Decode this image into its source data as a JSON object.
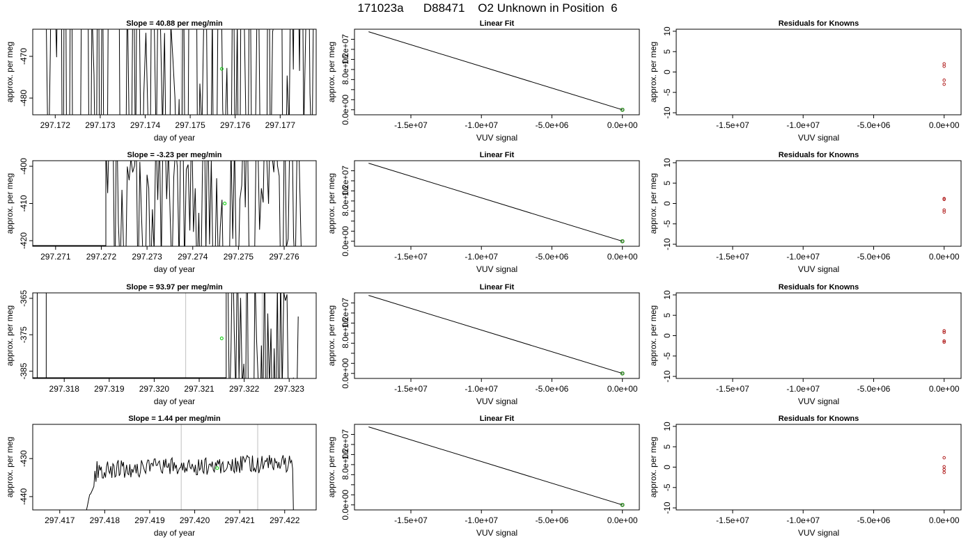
{
  "title": "171023a      D88471    O2 Unknown in Position  6",
  "chart_data": [
    {
      "type": "line",
      "panel": "time-series",
      "row": 0,
      "title": "Slope =  40.88  per meg/min",
      "xlabel": "day of year",
      "ylabel": "approx. per meg",
      "xlim": [
        297.1715,
        297.1778
      ],
      "ylim": [
        -484,
        -463.5
      ],
      "xticks": [
        297.172,
        297.173,
        297.174,
        297.175,
        297.176,
        297.177
      ],
      "xtick_labels": [
        "297.172",
        "297.173",
        "297.174",
        "297.175",
        "297.176",
        "297.177"
      ],
      "yticks": [
        -480,
        -470
      ],
      "ytick_labels": [
        "-480",
        "-470"
      ],
      "vlines": [
        297.1748
      ],
      "marker": {
        "x": 297.1757,
        "y": -473
      },
      "trace": {
        "seed": 7,
        "start": 297.1718,
        "end": 297.1778,
        "base": -474,
        "noise": 130,
        "n": 130
      }
    },
    {
      "type": "line",
      "panel": "linear-fit",
      "row": 0,
      "title": "Linear Fit",
      "xlabel": "VUV signal",
      "ylabel": "approx. per meg",
      "xlim": [
        -19000000.0,
        1200000.0
      ],
      "ylim": [
        -1000000.0,
        16000000.0
      ],
      "xticks": [
        -15000000.0,
        -10000000.0,
        -5000000.0,
        0
      ],
      "xtick_labels": [
        "-1.5e+07",
        "-1.0e+07",
        "-5.0e+06",
        "0.0e+00"
      ],
      "yticks": [
        0,
        2000000.0,
        4000000.0,
        6000000.0,
        8000000.0,
        10000000.0,
        12000000.0,
        14000000.0
      ],
      "ytick_labels": [
        "0.0e+00",
        "",
        "",
        "",
        "8.0e+06",
        "",
        "1.2e+07",
        ""
      ],
      "line": {
        "x": [
          -18000000.0,
          0
        ],
        "y": [
          15500000.0,
          0
        ]
      },
      "points": {
        "x": [
          0,
          0,
          0,
          0
        ],
        "y": [
          0,
          0,
          0,
          0
        ]
      }
    },
    {
      "type": "scatter",
      "panel": "residuals",
      "row": 0,
      "title": "Residuals for Knowns",
      "xlabel": "VUV signal",
      "ylabel": "approx. per meg",
      "xlim": [
        -19000000.0,
        1200000.0
      ],
      "ylim": [
        -10.5,
        10.5
      ],
      "xticks": [
        -15000000.0,
        -10000000.0,
        -5000000.0,
        0
      ],
      "xtick_labels": [
        "-1.5e+07",
        "-1.0e+07",
        "-5.0e+06",
        "0.0e+00"
      ],
      "yticks": [
        -10,
        -5,
        0,
        5,
        10
      ],
      "ytick_labels": [
        "-10",
        "-5",
        "0",
        "5",
        "10"
      ],
      "points": {
        "x": [
          0,
          0,
          0,
          0
        ],
        "y": [
          2.0,
          1.4,
          -2.0,
          -3.0
        ]
      }
    },
    {
      "type": "line",
      "panel": "time-series",
      "row": 1,
      "title": "Slope =  -3.23  per meg/min",
      "xlabel": "day of year",
      "ylabel": "approx. per meg",
      "xlim": [
        297.2705,
        297.2767
      ],
      "ylim": [
        -421.5,
        -398.5
      ],
      "xticks": [
        297.271,
        297.272,
        297.273,
        297.274,
        297.275,
        297.276
      ],
      "xtick_labels": [
        "297.271",
        "297.272",
        "297.273",
        "297.274",
        "297.275",
        "297.276"
      ],
      "yticks": [
        -420,
        -410,
        -400
      ],
      "ytick_labels": [
        "-420",
        "-410",
        "-400"
      ],
      "vlines": [],
      "marker": {
        "x": 297.2747,
        "y": -410
      },
      "trace": {
        "seed": 19,
        "start": 297.2721,
        "end": 297.2764,
        "base": -410,
        "noise": 60,
        "n": 110,
        "prefix": -421.5
      }
    },
    {
      "type": "line",
      "panel": "linear-fit",
      "row": 1,
      "title": "Linear Fit",
      "xlabel": "VUV signal",
      "ylabel": "approx. per meg",
      "xlim": [
        -19000000.0,
        1200000.0
      ],
      "ylim": [
        -1000000.0,
        16000000.0
      ],
      "xticks": [
        -15000000.0,
        -10000000.0,
        -5000000.0,
        0
      ],
      "xtick_labels": [
        "-1.5e+07",
        "-1.0e+07",
        "-5.0e+06",
        "0.0e+00"
      ],
      "yticks": [
        0,
        2000000.0,
        4000000.0,
        6000000.0,
        8000000.0,
        10000000.0,
        12000000.0,
        14000000.0
      ],
      "ytick_labels": [
        "0.0e+00",
        "",
        "",
        "",
        "8.0e+06",
        "",
        "1.2e+07",
        ""
      ],
      "line": {
        "x": [
          -18000000.0,
          0
        ],
        "y": [
          15500000.0,
          0
        ]
      },
      "points": {
        "x": [
          0,
          0,
          0,
          0
        ],
        "y": [
          0,
          0,
          0,
          0
        ]
      }
    },
    {
      "type": "scatter",
      "panel": "residuals",
      "row": 1,
      "title": "Residuals for Knowns",
      "xlabel": "VUV signal",
      "ylabel": "approx. per meg",
      "xlim": [
        -19000000.0,
        1200000.0
      ],
      "ylim": [
        -10.5,
        10.5
      ],
      "xticks": [
        -15000000.0,
        -10000000.0,
        -5000000.0,
        0
      ],
      "xtick_labels": [
        "-1.5e+07",
        "-1.0e+07",
        "-5.0e+06",
        "0.0e+00"
      ],
      "yticks": [
        -10,
        -5,
        0,
        5,
        10
      ],
      "ytick_labels": [
        "-10",
        "-5",
        "0",
        "5",
        "10"
      ],
      "points": {
        "x": [
          0,
          0,
          0,
          0
        ],
        "y": [
          1.2,
          1.0,
          -1.6,
          -2.1
        ]
      }
    },
    {
      "type": "line",
      "panel": "time-series",
      "row": 2,
      "title": "Slope =  93.97  per meg/min",
      "xlabel": "day of year",
      "ylabel": "approx. per meg",
      "xlim": [
        297.3173,
        297.3236
      ],
      "ylim": [
        -387,
        -363.5
      ],
      "xticks": [
        297.318,
        297.319,
        297.32,
        297.321,
        297.322,
        297.323
      ],
      "xtick_labels": [
        "297.318",
        "297.319",
        "297.320",
        "297.321",
        "297.322",
        "297.323"
      ],
      "yticks": [
        -385,
        -375,
        -365
      ],
      "ytick_labels": [
        "-385",
        "-375",
        "-365"
      ],
      "vlines": [
        297.3207,
        297.3224
      ],
      "marker": {
        "x": 297.3215,
        "y": -376
      },
      "trace": {
        "seed": 31,
        "start": 297.3216,
        "end": 297.3232,
        "base": -375,
        "noise": 70,
        "n": 45,
        "prefix": -387,
        "stub": [
          297.3174,
          297.3176
        ]
      }
    },
    {
      "type": "line",
      "panel": "linear-fit",
      "row": 2,
      "title": "Linear Fit",
      "xlabel": "VUV signal",
      "ylabel": "approx. per meg",
      "xlim": [
        -19000000.0,
        1200000.0
      ],
      "ylim": [
        -1000000.0,
        16000000.0
      ],
      "xticks": [
        -15000000.0,
        -10000000.0,
        -5000000.0,
        0
      ],
      "xtick_labels": [
        "-1.5e+07",
        "-1.0e+07",
        "-5.0e+06",
        "0.0e+00"
      ],
      "yticks": [
        0,
        2000000.0,
        4000000.0,
        6000000.0,
        8000000.0,
        10000000.0,
        12000000.0,
        14000000.0
      ],
      "ytick_labels": [
        "0.0e+00",
        "",
        "",
        "",
        "8.0e+06",
        "",
        "1.2e+07",
        ""
      ],
      "line": {
        "x": [
          -18000000.0,
          0
        ],
        "y": [
          15500000.0,
          0
        ]
      },
      "points": {
        "x": [
          0,
          0,
          0,
          0
        ],
        "y": [
          0,
          0,
          0,
          0
        ]
      }
    },
    {
      "type": "scatter",
      "panel": "residuals",
      "row": 2,
      "title": "Residuals for Knowns",
      "xlabel": "VUV signal",
      "ylabel": "approx. per meg",
      "xlim": [
        -19000000.0,
        1200000.0
      ],
      "ylim": [
        -10.5,
        10.5
      ],
      "xticks": [
        -15000000.0,
        -10000000.0,
        -5000000.0,
        0
      ],
      "xtick_labels": [
        "-1.5e+07",
        "-1.0e+07",
        "-5.0e+06",
        "0.0e+00"
      ],
      "yticks": [
        -10,
        -5,
        0,
        5,
        10
      ],
      "ytick_labels": [
        "-10",
        "-5",
        "0",
        "5",
        "10"
      ],
      "points": {
        "x": [
          0,
          0,
          0,
          0
        ],
        "y": [
          1.2,
          0.8,
          -1.3,
          -1.6
        ]
      }
    },
    {
      "type": "line",
      "panel": "time-series",
      "row": 3,
      "title": "Slope =  1.44  per meg/min",
      "xlabel": "day of year",
      "ylabel": "approx. per meg",
      "xlim": [
        297.4164,
        297.4227
      ],
      "ylim": [
        -443.5,
        -421
      ],
      "xticks": [
        297.417,
        297.418,
        297.419,
        297.42,
        297.421,
        297.422
      ],
      "xtick_labels": [
        "297.417",
        "297.418",
        "297.419",
        "297.420",
        "297.421",
        "297.422"
      ],
      "yticks": [
        -440,
        -430
      ],
      "ytick_labels": [
        "-440",
        "-430"
      ],
      "vlines": [
        297.4197,
        297.4214
      ],
      "marker": {
        "x": 297.4205,
        "y": -432.5
      },
      "trace": {
        "seed": 53,
        "start": 297.4175,
        "end": 297.4222,
        "base": -433,
        "noise": 2.4,
        "n": 200,
        "smooth": true
      }
    },
    {
      "type": "line",
      "panel": "linear-fit",
      "row": 3,
      "title": "Linear Fit",
      "xlabel": "VUV signal",
      "ylabel": "approx. per meg",
      "xlim": [
        -19000000.0,
        1200000.0
      ],
      "ylim": [
        -1000000.0,
        16000000.0
      ],
      "xticks": [
        -15000000.0,
        -10000000.0,
        -5000000.0,
        0
      ],
      "xtick_labels": [
        "-1.5e+07",
        "-1.0e+07",
        "-5.0e+06",
        "0.0e+00"
      ],
      "yticks": [
        0,
        2000000.0,
        4000000.0,
        6000000.0,
        8000000.0,
        10000000.0,
        12000000.0,
        14000000.0
      ],
      "ytick_labels": [
        "0.0e+00",
        "",
        "",
        "",
        "8.0e+06",
        "",
        "1.2e+07",
        ""
      ],
      "line": {
        "x": [
          -18000000.0,
          0
        ],
        "y": [
          15500000.0,
          0
        ]
      },
      "points": {
        "x": [
          0,
          0,
          0,
          0
        ],
        "y": [
          0,
          0,
          0,
          0
        ]
      }
    },
    {
      "type": "scatter",
      "panel": "residuals",
      "row": 3,
      "title": "Residuals for Knowns",
      "xlabel": "VUV signal",
      "ylabel": "approx. per meg",
      "xlim": [
        -19000000.0,
        1200000.0
      ],
      "ylim": [
        -10.5,
        10.5
      ],
      "xticks": [
        -15000000.0,
        -10000000.0,
        -5000000.0,
        0
      ],
      "xtick_labels": [
        "-1.5e+07",
        "-1.0e+07",
        "-5.0e+06",
        "0.0e+00"
      ],
      "yticks": [
        -10,
        -5,
        0,
        5,
        10
      ],
      "ytick_labels": [
        "-10",
        "-5",
        "0",
        "5",
        "10"
      ],
      "points": {
        "x": [
          0,
          0,
          0,
          0
        ],
        "y": [
          2.3,
          0.1,
          -0.6,
          -1.3
        ]
      }
    }
  ],
  "colors": {
    "axis": "#000000",
    "trace": "#000000",
    "vline": "#bebebe",
    "marker_green": "#00cc00",
    "fit_point": "#2e8b22",
    "residual_point": "#b22222"
  }
}
